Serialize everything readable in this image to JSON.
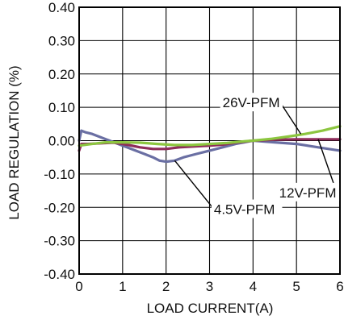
{
  "chart_data": {
    "type": "line",
    "title": "",
    "xlabel": "LOAD CURRENT(A)",
    "ylabel": "LOAD REGULATION (%)",
    "xlim": [
      0,
      6
    ],
    "ylim": [
      -0.4,
      0.4
    ],
    "x_ticks": [
      "0",
      "1",
      "2",
      "3",
      "4",
      "5",
      "6"
    ],
    "y_ticks": [
      "0.40",
      "0.30",
      "0.20",
      "0.10",
      "0.00",
      "-0.10",
      "-0.20",
      "-0.30",
      "-0.40"
    ],
    "grid": true,
    "series": [
      {
        "name": "4.5V-PFM",
        "color": "#6a6fa3",
        "points": [
          [
            0.0,
            0.0
          ],
          [
            0.05,
            0.03
          ],
          [
            0.15,
            0.025
          ],
          [
            0.3,
            0.02
          ],
          [
            0.5,
            0.01
          ],
          [
            0.7,
            0.0
          ],
          [
            0.9,
            -0.01
          ],
          [
            1.1,
            -0.02
          ],
          [
            1.3,
            -0.03
          ],
          [
            1.5,
            -0.04
          ],
          [
            1.7,
            -0.05
          ],
          [
            1.85,
            -0.06
          ],
          [
            2.0,
            -0.063
          ],
          [
            2.2,
            -0.06
          ],
          [
            2.4,
            -0.05
          ],
          [
            2.7,
            -0.04
          ],
          [
            3.0,
            -0.03
          ],
          [
            3.3,
            -0.02
          ],
          [
            3.6,
            -0.01
          ],
          [
            4.0,
            0.0
          ],
          [
            4.5,
            -0.005
          ],
          [
            5.0,
            -0.01
          ],
          [
            5.5,
            -0.02
          ],
          [
            6.0,
            -0.03
          ]
        ]
      },
      {
        "name": "12V-PFM",
        "color": "#8e2d5a",
        "points": [
          [
            0.0,
            -0.03
          ],
          [
            0.05,
            -0.01
          ],
          [
            0.2,
            -0.01
          ],
          [
            0.5,
            -0.008
          ],
          [
            0.8,
            -0.006
          ],
          [
            1.1,
            -0.012
          ],
          [
            1.4,
            -0.02
          ],
          [
            1.7,
            -0.025
          ],
          [
            2.0,
            -0.025
          ],
          [
            2.3,
            -0.02
          ],
          [
            2.7,
            -0.017
          ],
          [
            3.0,
            -0.015
          ],
          [
            3.3,
            -0.012
          ],
          [
            3.6,
            -0.006
          ],
          [
            4.0,
            0.0
          ],
          [
            4.5,
            0.003
          ],
          [
            5.0,
            0.004
          ],
          [
            5.5,
            0.004
          ],
          [
            6.0,
            0.004
          ]
        ]
      },
      {
        "name": "26V-PFM",
        "color": "#8cc63f",
        "points": [
          [
            0.0,
            -0.015
          ],
          [
            0.3,
            -0.01
          ],
          [
            0.6,
            -0.005
          ],
          [
            1.0,
            -0.005
          ],
          [
            1.4,
            -0.006
          ],
          [
            1.8,
            -0.01
          ],
          [
            2.2,
            -0.013
          ],
          [
            2.6,
            -0.013
          ],
          [
            3.0,
            -0.01
          ],
          [
            3.4,
            -0.007
          ],
          [
            3.8,
            -0.002
          ],
          [
            4.0,
            0.0
          ],
          [
            4.4,
            0.005
          ],
          [
            4.8,
            0.012
          ],
          [
            5.2,
            0.02
          ],
          [
            5.6,
            0.03
          ],
          [
            6.0,
            0.043
          ]
        ]
      }
    ],
    "annotations": [
      {
        "text": "26V-PFM",
        "series": "26V-PFM",
        "x": 3.3,
        "y": 0.1,
        "target_x": 5.1,
        "target_y": 0.02
      },
      {
        "text": "12V-PFM",
        "series": "12V-PFM",
        "x": 4.6,
        "y": -0.17,
        "target_x": 5.5,
        "target_y": 0.004
      },
      {
        "text": "4.5V-PFM",
        "series": "4.5V-PFM",
        "x": 3.1,
        "y": -0.22,
        "target_x": 2.2,
        "target_y": -0.06
      }
    ]
  }
}
